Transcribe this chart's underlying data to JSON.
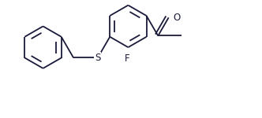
{
  "bg_color": "#ffffff",
  "line_color": "#1a1a3a",
  "line_width": 1.3,
  "fig_width": 3.32,
  "fig_height": 1.5,
  "dpi": 100,
  "label_F": "F",
  "label_S": "S",
  "label_O": "O",
  "font_size_atoms": 8.5,
  "r_hex": 0.9,
  "xlim": [
    -0.3,
    10.8
  ],
  "ylim": [
    0.2,
    5.2
  ]
}
